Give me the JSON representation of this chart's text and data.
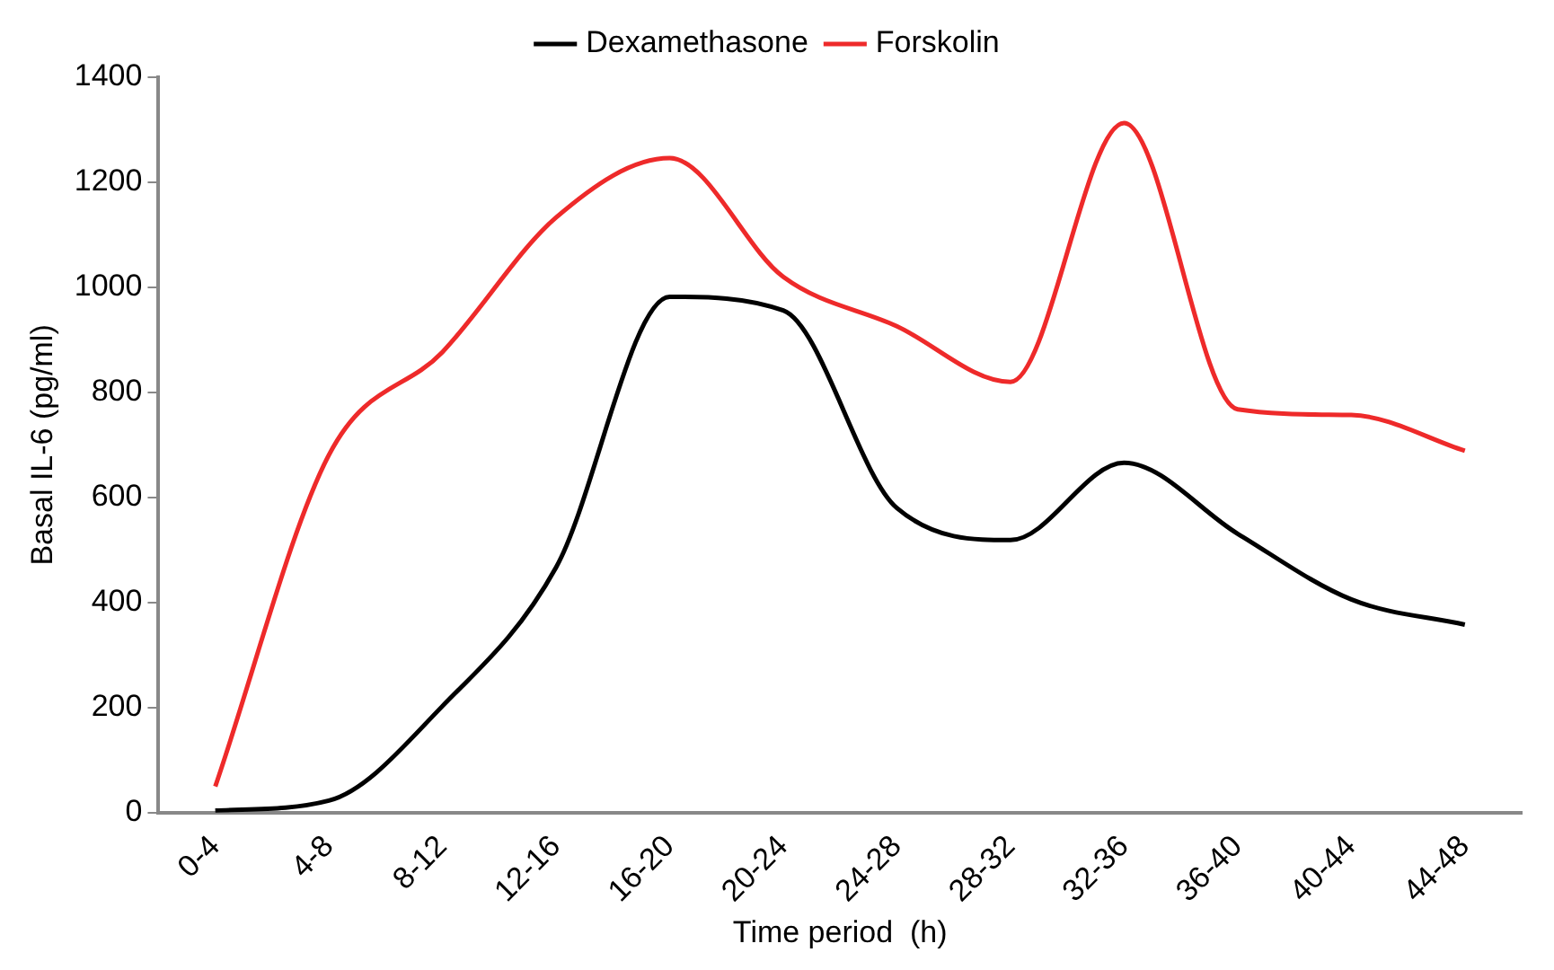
{
  "chart_data": {
    "type": "line",
    "xlabel": "Time period  (h)",
    "ylabel": "Basal IL-6 (pg/ml)",
    "categories": [
      "0-4",
      "4-8",
      "8-12",
      "12-16",
      "16-20",
      "20-24",
      "24-28",
      "28-32",
      "32-36",
      "36-40",
      "40-44",
      "44-48"
    ],
    "series": [
      {
        "name": "Dexamethasone",
        "color": "#000000",
        "values": [
          4,
          23,
          203,
          467,
          982,
          956,
          580,
          519,
          666,
          531,
          406,
          358
        ]
      },
      {
        "name": "Forskolin",
        "color": "#ee2a2a",
        "values": [
          50,
          681,
          877,
          1133,
          1246,
          1020,
          926,
          820,
          1313,
          768,
          757,
          689
        ]
      }
    ],
    "ylim": [
      0,
      1400
    ],
    "yticks": [
      0,
      200,
      400,
      600,
      800,
      1000,
      1200,
      1400
    ],
    "grid": false,
    "legend": "top",
    "marker": "none",
    "line_style": "solid"
  }
}
